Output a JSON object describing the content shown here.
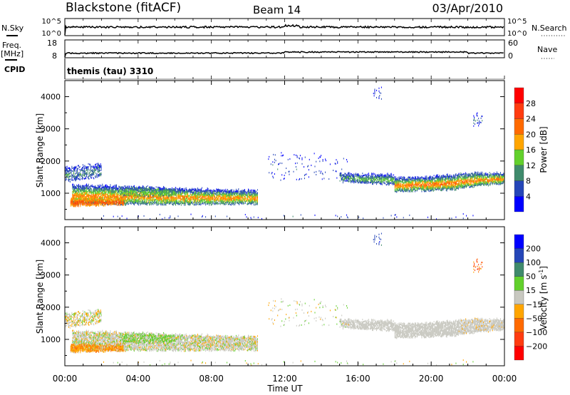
{
  "header": {
    "title": "Blackstone (fitACF)",
    "beam": "Beam 14",
    "date": "03/Apr/2010"
  },
  "top_panels": {
    "nsky_label": "N.Sky",
    "nsearch_label": "N.Search",
    "nsky_ticks": [
      "10^5",
      "10^0"
    ],
    "nsearch_ticks": [
      "10^5",
      "10^0"
    ],
    "freq_label": "Freq.",
    "freq_unit": "[MHz]",
    "freq_ticks": [
      "18",
      "8"
    ],
    "nave_label": "Nave",
    "nave_ticks": [
      "60",
      "0"
    ],
    "cpid_label": "CPID",
    "cpid_value": "themis (tau) 3310"
  },
  "chart_data": [
    {
      "type": "heatmap",
      "name": "power",
      "ylabel": "Slant Range [km]",
      "xlabel": "Time UT",
      "xlim": [
        0,
        24
      ],
      "ylim": [
        180,
        4500
      ],
      "xticks": [
        "00:00",
        "04:00",
        "08:00",
        "12:00",
        "16:00",
        "20:00",
        "00:00"
      ],
      "yticks": [
        {
          "v": 1000,
          "label": "1000"
        },
        {
          "v": 2000,
          "label": "2000"
        },
        {
          "v": 3000,
          "label": "3000"
        },
        {
          "v": 4000,
          "label": "4000"
        }
      ],
      "colorbar": {
        "label": "Power [dB]",
        "ticks": [
          "28",
          "24",
          "20",
          "16",
          "12",
          "8",
          "4"
        ],
        "colors": [
          "#0000ff",
          "#2546b8",
          "#3f8a6c",
          "#62d02c",
          "#ffa500",
          "#ff6a00",
          "#ff3c10",
          "#ff0000"
        ],
        "bounds": [
          0,
          4,
          8,
          12,
          16,
          20,
          24,
          28,
          32
        ]
      }
    },
    {
      "type": "heatmap",
      "name": "velocity",
      "ylabel": "Slant Range [km]",
      "xlabel": "Time UT",
      "xlim": [
        0,
        24
      ],
      "ylim": [
        180,
        4500
      ],
      "xticks": [
        "00:00",
        "04:00",
        "08:00",
        "12:00",
        "16:00",
        "20:00",
        "00:00"
      ],
      "yticks": [
        {
          "v": 1000,
          "label": "1000"
        },
        {
          "v": 2000,
          "label": "2000"
        },
        {
          "v": 3000,
          "label": "3000"
        },
        {
          "v": 4000,
          "label": "4000"
        }
      ],
      "colorbar": {
        "label": "Velocity [m s^-1]",
        "label_main": "Velocity [m s",
        "label_sup": "-1",
        "label_end": "]",
        "ticks": [
          "200",
          "100",
          "50",
          "15",
          "−15",
          "−50",
          "−100",
          "−200"
        ],
        "colors": [
          "#ff0000",
          "#ff3c10",
          "#ff6a00",
          "#ffa500",
          "#c8c8c0",
          "#62d02c",
          "#3f8a6c",
          "#2546b8",
          "#0000ff"
        ],
        "bounds": [
          -300,
          -200,
          -100,
          -50,
          -15,
          15,
          50,
          100,
          200,
          300
        ]
      }
    }
  ],
  "echo_regions": [
    {
      "t": [
        0.0,
        2.0
      ],
      "lo": [
        1350,
        1500
      ],
      "hi": [
        1800,
        1900
      ],
      "density": 0.55,
      "p_core": 10,
      "p_edge": 4,
      "v_mean": -5,
      "v_spread": 30
    },
    {
      "t": [
        0.4,
        10.5
      ],
      "lo": [
        650,
        650
      ],
      "hi": [
        1250,
        1050
      ],
      "density": 0.85,
      "p_core": 21,
      "p_edge": 5,
      "v_mean": 0,
      "v_spread": 22
    },
    {
      "t": [
        0.3,
        3.2
      ],
      "lo": [
        600,
        640
      ],
      "hi": [
        820,
        800
      ],
      "density": 0.9,
      "p_core": 25,
      "p_edge": 18,
      "v_mean": -40,
      "v_spread": 30
    },
    {
      "t": [
        3.0,
        6.0
      ],
      "lo": [
        900,
        900
      ],
      "hi": [
        1150,
        1100
      ],
      "density": 0.5,
      "p_core": 14,
      "p_edge": 10,
      "v_mean": 25,
      "v_spread": 15
    },
    {
      "t": [
        15.0,
        18.0
      ],
      "lo": [
        1350,
        1250
      ],
      "hi": [
        1600,
        1550
      ],
      "density": 0.75,
      "p_core": 14,
      "p_edge": 4,
      "v_mean": 0,
      "v_spread": 10
    },
    {
      "t": [
        18.0,
        21.5
      ],
      "lo": [
        1050,
        1100
      ],
      "hi": [
        1450,
        1550
      ],
      "density": 0.85,
      "p_core": 23,
      "p_edge": 5,
      "v_mean": 0,
      "v_spread": 10
    },
    {
      "t": [
        21.5,
        24.0
      ],
      "lo": [
        1150,
        1300
      ],
      "hi": [
        1600,
        1600
      ],
      "density": 0.85,
      "p_core": 22,
      "p_edge": 6,
      "v_mean": -5,
      "v_spread": 12
    },
    {
      "t": [
        11.0,
        15.5
      ],
      "lo": [
        1400,
        1400
      ],
      "hi": [
        2300,
        2100
      ],
      "density": 0.04,
      "p_core": 6,
      "p_edge": 3,
      "v_mean": 0,
      "v_spread": 25
    },
    {
      "t": [
        1.5,
        23.0
      ],
      "lo": [
        200,
        200
      ],
      "hi": [
        300,
        300
      ],
      "density": 0.03,
      "p_core": 6,
      "p_edge": 3,
      "v_mean": 0,
      "v_spread": 40
    },
    {
      "t": [
        16.8,
        17.3
      ],
      "lo": [
        3900,
        3900
      ],
      "hi": [
        4250,
        4250
      ],
      "density": 0.12,
      "p_core": 6,
      "p_edge": 3,
      "v_mean": 150,
      "v_spread": 60
    },
    {
      "t": [
        22.3,
        22.8
      ],
      "lo": [
        3100,
        3100
      ],
      "hi": [
        3450,
        3450
      ],
      "density": 0.15,
      "p_core": 8,
      "p_edge": 3,
      "v_mean": -100,
      "v_spread": 80
    }
  ]
}
